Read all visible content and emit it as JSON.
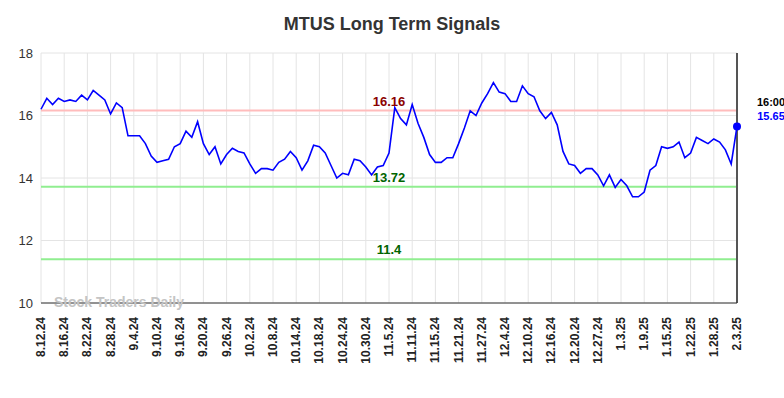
{
  "chart_data": {
    "type": "line",
    "title": "MTUS Long Term Signals",
    "watermark": "Stock Traders Daily",
    "last_point_label": "16:00",
    "color": "#0000ff",
    "marker": "last",
    "grid": true,
    "ylim": [
      10,
      18
    ],
    "yticks": [
      10,
      12,
      14,
      16,
      18
    ],
    "categories": [
      "8.12.24",
      null,
      null,
      null,
      "8.16.24",
      null,
      null,
      null,
      "8.22.24",
      null,
      null,
      null,
      "8.28.24",
      null,
      null,
      null,
      "9.4.24",
      null,
      null,
      null,
      "9.10.24",
      null,
      null,
      null,
      "9.16.24",
      null,
      null,
      null,
      "9.20.24",
      null,
      null,
      null,
      "9.26.24",
      null,
      null,
      null,
      "10.2.24",
      null,
      null,
      null,
      "10.8.24",
      null,
      null,
      null,
      "10.14.24",
      null,
      null,
      null,
      "10.18.24",
      null,
      null,
      null,
      "10.24.24",
      null,
      null,
      null,
      "10.30.24",
      null,
      null,
      null,
      "11.5.24",
      null,
      null,
      null,
      "11.11.24",
      null,
      null,
      null,
      "11.15.24",
      null,
      null,
      null,
      "11.21.24",
      null,
      null,
      null,
      "11.27.24",
      null,
      null,
      null,
      "12.4.24",
      null,
      null,
      null,
      "12.10.24",
      null,
      null,
      null,
      "12.16.24",
      null,
      null,
      null,
      "12.20.24",
      null,
      null,
      null,
      "12.27.24",
      null,
      null,
      null,
      "1.3.25",
      null,
      null,
      null,
      "1.9.25",
      null,
      null,
      null,
      "1.15.25",
      null,
      null,
      null,
      "1.22.25",
      null,
      null,
      null,
      "1.28.25",
      null,
      null,
      null,
      "2.3.25"
    ],
    "values": [
      16.2,
      16.55,
      16.35,
      16.55,
      16.45,
      16.5,
      16.45,
      16.65,
      16.5,
      16.8,
      16.65,
      16.5,
      16.05,
      16.4,
      16.25,
      15.35,
      15.35,
      15.35,
      15.1,
      14.7,
      14.5,
      14.55,
      14.6,
      15.0,
      15.1,
      15.5,
      15.3,
      15.8,
      15.1,
      14.75,
      15.0,
      14.45,
      14.75,
      14.95,
      14.85,
      14.8,
      14.45,
      14.15,
      14.3,
      14.3,
      14.25,
      14.5,
      14.6,
      14.85,
      14.65,
      14.25,
      14.55,
      15.05,
      15.0,
      14.8,
      14.4,
      14.0,
      14.15,
      14.1,
      14.6,
      14.55,
      14.35,
      14.1,
      14.35,
      14.4,
      14.8,
      16.25,
      15.9,
      15.7,
      16.35,
      15.75,
      15.3,
      14.75,
      14.5,
      14.5,
      14.65,
      14.65,
      15.1,
      15.6,
      16.15,
      16.0,
      16.4,
      16.7,
      17.05,
      16.75,
      16.7,
      16.45,
      16.45,
      16.95,
      16.7,
      16.6,
      16.15,
      15.9,
      16.1,
      15.7,
      14.85,
      14.45,
      14.4,
      14.15,
      14.3,
      14.3,
      14.1,
      13.75,
      14.1,
      13.7,
      13.95,
      13.75,
      13.4,
      13.4,
      13.55,
      14.25,
      14.4,
      15.0,
      14.95,
      15.0,
      15.15,
      14.65,
      14.8,
      15.3,
      15.2,
      15.1,
      15.25,
      15.15,
      14.9,
      14.45,
      15.65
    ],
    "reference_lines": [
      {
        "value": 16.16,
        "color": "#ffbcbc",
        "label_color": "#8b0000"
      },
      {
        "value": 13.72,
        "color": "#90ee90",
        "label_color": "#006400"
      },
      {
        "value": 11.4,
        "color": "#90ee90",
        "label_color": "#006400"
      }
    ]
  }
}
